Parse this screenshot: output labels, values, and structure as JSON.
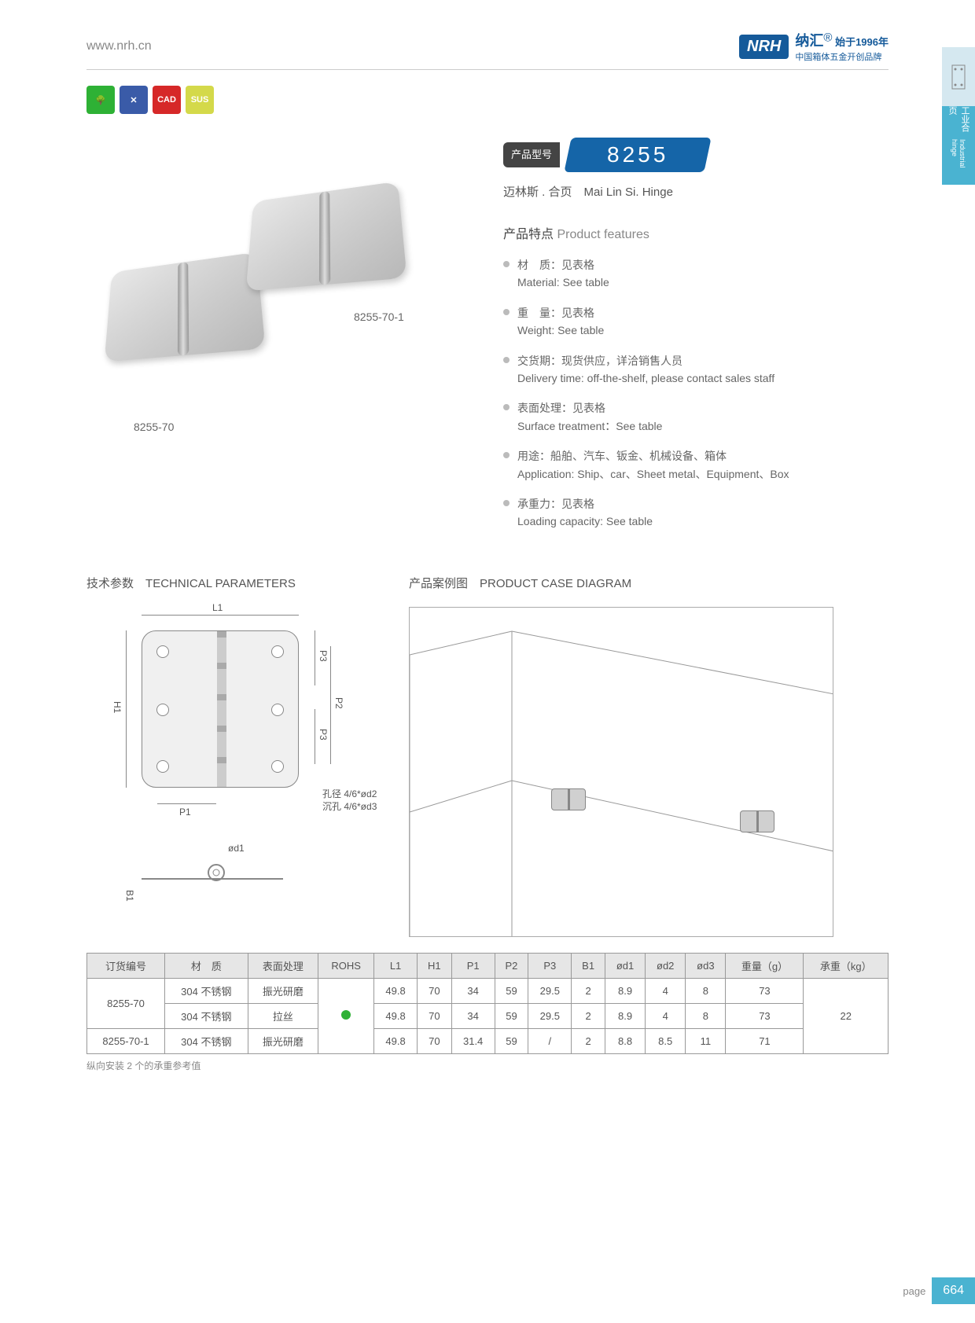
{
  "header": {
    "url": "www.nrh.cn",
    "logo": "NRH",
    "brand_cn": "纳汇",
    "since": "始于1996年",
    "tagline": "中国箱体五金开创品牌"
  },
  "sideTab": {
    "cn": "工业合页",
    "en": "Industrial hinge"
  },
  "badges": [
    "🌳",
    "✕",
    "CAD",
    "SUS"
  ],
  "model": {
    "label_cn": "产品型号",
    "number": "8255"
  },
  "subtitle": {
    "cn": "迈林斯 . 合页",
    "en": "Mai Lin Si. Hinge"
  },
  "productLabels": {
    "p1": "8255-70",
    "p2": "8255-70-1"
  },
  "featuresTitle": {
    "cn": "产品特点",
    "en": "Product features"
  },
  "features": [
    {
      "cn": "材　质：见表格",
      "en": "Material: See table"
    },
    {
      "cn": "重　量：见表格",
      "en": "Weight: See table"
    },
    {
      "cn": "交货期：现货供应，详洽销售人员",
      "en": "Delivery time: off-the-shelf, please contact sales staff"
    },
    {
      "cn": "表面处理：见表格",
      "en": "Surface treatment：See table"
    },
    {
      "cn": "用途：船舶、汽车、钣金、机械设备、箱体",
      "en": "Application: Ship、car、Sheet metal、Equipment、Box"
    },
    {
      "cn": "承重力：见表格",
      "en": "Loading capacity: See table"
    }
  ],
  "techTitle": {
    "cn": "技术参数",
    "en": "TECHNICAL PARAMETERS"
  },
  "caseTitle": {
    "cn": "产品案例图",
    "en": "PRODUCT CASE DIAGRAM"
  },
  "dims": {
    "L1": "L1",
    "H1": "H1",
    "P1": "P1",
    "P2": "P2",
    "P3": "P3",
    "B1": "B1",
    "od1": "ød1"
  },
  "holeNote": {
    "l1": "孔径 4/6*ød2",
    "l2": "沉孔 4/6*ød3"
  },
  "table": {
    "headers": [
      "订货编号",
      "材　质",
      "表面处理",
      "ROHS",
      "L1",
      "H1",
      "P1",
      "P2",
      "P3",
      "B1",
      "ød1",
      "ød2",
      "ød3",
      "重量（g）",
      "承重（kg）"
    ],
    "rows": [
      {
        "code": "8255-70",
        "mat": "304 不锈钢",
        "surf": "振光研磨",
        "L1": "49.8",
        "H1": "70",
        "P1": "34",
        "P2": "59",
        "P3": "29.5",
        "B1": "2",
        "od1": "8.9",
        "od2": "4",
        "od3": "8",
        "wt": "73",
        "load": "22",
        "rowspan_code": 2,
        "rowspan_load": 3,
        "rohs_span": 3
      },
      {
        "code": "",
        "mat": "304 不锈钢",
        "surf": "拉丝",
        "L1": "49.8",
        "H1": "70",
        "P1": "34",
        "P2": "59",
        "P3": "29.5",
        "B1": "2",
        "od1": "8.9",
        "od2": "4",
        "od3": "8",
        "wt": "73"
      },
      {
        "code": "8255-70-1",
        "mat": "304 不锈钢",
        "surf": "振光研磨",
        "L1": "49.8",
        "H1": "70",
        "P1": "31.4",
        "P2": "59",
        "P3": "/",
        "B1": "2",
        "od1": "8.8",
        "od2": "8.5",
        "od3": "11",
        "wt": "71"
      }
    ]
  },
  "tableNote": "纵向安装 2 个的承重参考值",
  "page": {
    "label": "page",
    "num": "664"
  }
}
